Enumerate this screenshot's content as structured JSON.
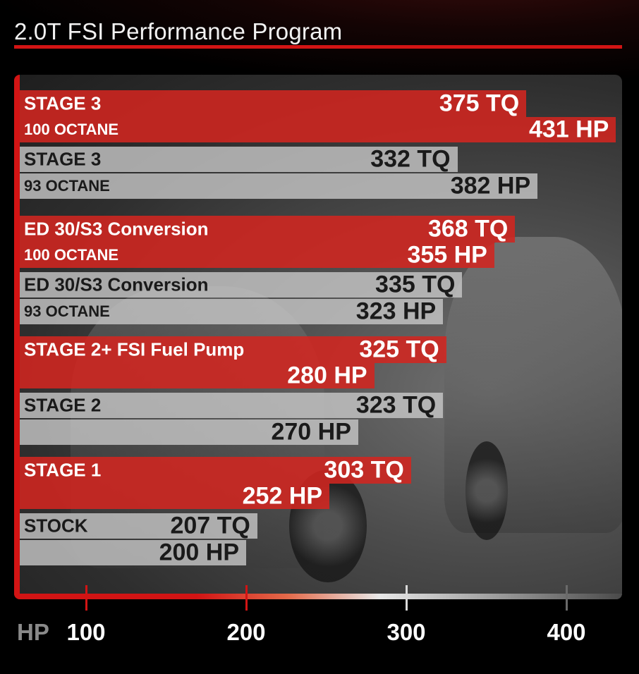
{
  "header": {
    "title": "2.0T FSI Performance Program"
  },
  "colors": {
    "accent": "#d21414",
    "red_bar": "#d22620",
    "gray_bar": "#c8c8c8"
  },
  "chart_data": {
    "type": "bar",
    "orientation": "horizontal",
    "axis": {
      "unit_label": "HP",
      "ticks": [
        100,
        200,
        300,
        400
      ],
      "tick_labels": [
        "100",
        "200",
        "300",
        "400"
      ]
    },
    "bars": [
      {
        "label": "STAGE 3",
        "value": 375,
        "value_label": "375 TQ",
        "color": "red",
        "label_size": "big"
      },
      {
        "label": "100 OCTANE",
        "value": 431,
        "value_label": "431 HP",
        "color": "red",
        "label_size": "small"
      },
      {
        "label": "STAGE 3",
        "value": 332,
        "value_label": "332 TQ",
        "color": "gray",
        "label_size": "big"
      },
      {
        "label": "93 OCTANE",
        "value": 382,
        "value_label": "382 HP",
        "color": "gray",
        "label_size": "small"
      },
      {
        "label": "ED 30/S3 Conversion",
        "value": 368,
        "value_label": "368 TQ",
        "color": "red",
        "label_size": "big"
      },
      {
        "label": "100 OCTANE",
        "value": 355,
        "value_label": "355 HP",
        "color": "red",
        "label_size": "small"
      },
      {
        "label": "ED 30/S3 Conversion",
        "value": 335,
        "value_label": "335 TQ",
        "color": "gray",
        "label_size": "big"
      },
      {
        "label": "93 OCTANE",
        "value": 323,
        "value_label": "323 HP",
        "color": "gray",
        "label_size": "small"
      },
      {
        "label": "STAGE 2+ FSI Fuel Pump",
        "value": 325,
        "value_label": "325 TQ",
        "color": "red",
        "label_size": "big"
      },
      {
        "label": "",
        "value": 280,
        "value_label": "280 HP",
        "color": "red",
        "label_size": "small"
      },
      {
        "label": "STAGE 2",
        "value": 323,
        "value_label": "323 TQ",
        "color": "gray",
        "label_size": "big"
      },
      {
        "label": "",
        "value": 270,
        "value_label": "270 HP",
        "color": "gray",
        "label_size": "small"
      },
      {
        "label": "STAGE 1",
        "value": 303,
        "value_label": "303 TQ",
        "color": "red",
        "label_size": "big"
      },
      {
        "label": "",
        "value": 252,
        "value_label": "252 HP",
        "color": "red",
        "label_size": "small"
      },
      {
        "label": "STOCK",
        "value": 207,
        "value_label": "207 TQ",
        "color": "gray",
        "label_size": "big"
      },
      {
        "label": "",
        "value": 200,
        "value_label": "200 HP",
        "color": "gray",
        "label_size": "small"
      }
    ]
  }
}
